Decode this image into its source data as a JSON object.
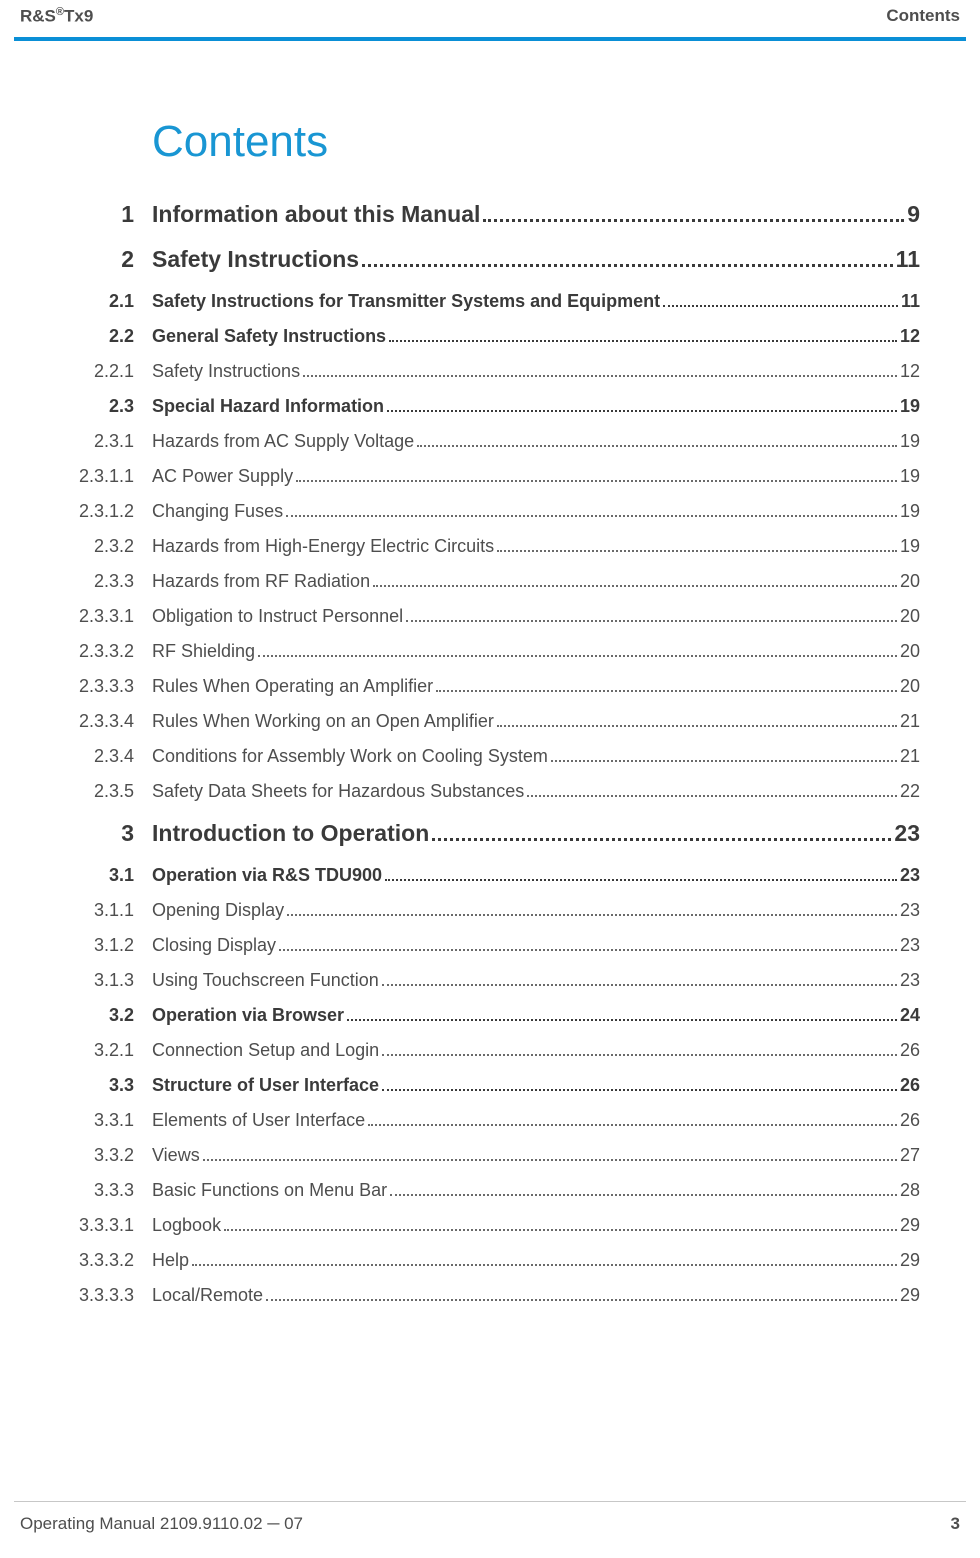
{
  "header": {
    "left_html": "R&amp;S<sup>®</sup>Tx9",
    "right": "Contents"
  },
  "title": "Contents",
  "entries": [
    {
      "level": 1,
      "num": "1",
      "title": "Information about this Manual",
      "page": "9"
    },
    {
      "level": 1,
      "num": "2",
      "title": "Safety Instructions",
      "page": "11"
    },
    {
      "level": 2,
      "num": "2.1",
      "title": "Safety Instructions for Transmitter Systems and Equipment",
      "page": "11"
    },
    {
      "level": 2,
      "num": "2.2",
      "title": "General Safety Instructions",
      "page": "12"
    },
    {
      "level": 3,
      "num": "2.2.1",
      "title": "Safety Instructions",
      "page": "12"
    },
    {
      "level": 2,
      "num": "2.3",
      "title": "Special Hazard Information",
      "page": "19"
    },
    {
      "level": 3,
      "num": "2.3.1",
      "title": "Hazards from AC Supply Voltage",
      "page": "19"
    },
    {
      "level": 3,
      "num": "2.3.1.1",
      "title": "AC Power Supply",
      "page": "19"
    },
    {
      "level": 3,
      "num": "2.3.1.2",
      "title": "Changing Fuses",
      "page": "19"
    },
    {
      "level": 3,
      "num": "2.3.2",
      "title": "Hazards from High‑Energy Electric Circuits",
      "page": "19"
    },
    {
      "level": 3,
      "num": "2.3.3",
      "title": "Hazards from RF Radiation",
      "page": "20"
    },
    {
      "level": 3,
      "num": "2.3.3.1",
      "title": "Obligation to Instruct Personnel",
      "page": "20"
    },
    {
      "level": 3,
      "num": "2.3.3.2",
      "title": "RF Shielding",
      "page": "20"
    },
    {
      "level": 3,
      "num": "2.3.3.3",
      "title": "Rules When Operating an Amplifier",
      "page": "20"
    },
    {
      "level": 3,
      "num": "2.3.3.4",
      "title": "Rules When Working on an Open Amplifier",
      "page": "21"
    },
    {
      "level": 3,
      "num": "2.3.4",
      "title": "Conditions for Assembly Work on Cooling System",
      "page": "21"
    },
    {
      "level": 3,
      "num": "2.3.5",
      "title": "Safety Data Sheets for Hazardous Substances",
      "page": "22"
    },
    {
      "level": 1,
      "num": "3",
      "title": "Introduction to Operation",
      "page": "23"
    },
    {
      "level": 2,
      "num": "3.1",
      "title": "Operation via R&S TDU900",
      "page": "23"
    },
    {
      "level": 3,
      "num": "3.1.1",
      "title": "Opening Display",
      "page": "23"
    },
    {
      "level": 3,
      "num": "3.1.2",
      "title": "Closing Display",
      "page": "23"
    },
    {
      "level": 3,
      "num": "3.1.3",
      "title": "Using Touchscreen Function",
      "page": "23"
    },
    {
      "level": 2,
      "num": "3.2",
      "title": "Operation via Browser",
      "page": "24"
    },
    {
      "level": 3,
      "num": "3.2.1",
      "title": "Connection Setup and Login",
      "page": "26"
    },
    {
      "level": 2,
      "num": "3.3",
      "title": "Structure of User Interface",
      "page": "26"
    },
    {
      "level": 3,
      "num": "3.3.1",
      "title": "Elements of User Interface",
      "page": "26"
    },
    {
      "level": 3,
      "num": "3.3.2",
      "title": "Views",
      "page": "27"
    },
    {
      "level": 3,
      "num": "3.3.3",
      "title": "Basic Functions on Menu Bar",
      "page": "28"
    },
    {
      "level": 3,
      "num": "3.3.3.1",
      "title": "Logbook",
      "page": "29"
    },
    {
      "level": 3,
      "num": "3.3.3.2",
      "title": "Help",
      "page": "29"
    },
    {
      "level": 3,
      "num": "3.3.3.3",
      "title": "Local/Remote",
      "page": "29"
    }
  ],
  "footer": {
    "left": "Operating Manual 2109.9110.02 ─ 07",
    "page": "3"
  },
  "colors": {
    "accent": "#0a8fd6",
    "title": "#1996d3",
    "text": "#4e4e4e"
  }
}
